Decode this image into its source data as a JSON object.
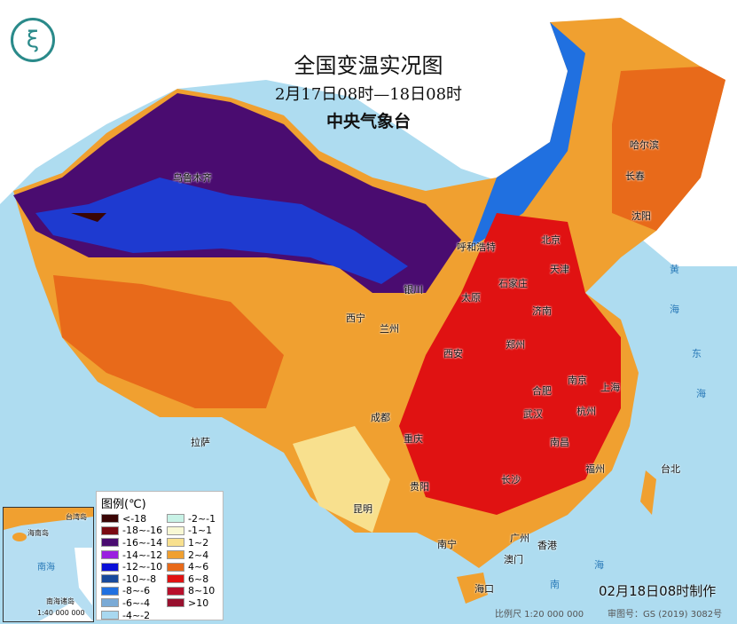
{
  "header": {
    "title": "全国变温实况图",
    "period": "2月17日08时—18日08时",
    "agency": "中央气象台"
  },
  "logo": {
    "icon": "cma-logo"
  },
  "cities": [
    "乌鲁木齐",
    "哈尔滨",
    "长春",
    "沈阳",
    "北京",
    "天津",
    "呼和浩特",
    "石家庄",
    "太原",
    "济南",
    "银川",
    "西宁",
    "兰州",
    "西安",
    "郑州",
    "合肥",
    "南京",
    "上海",
    "杭州",
    "武汉",
    "成都",
    "重庆",
    "拉萨",
    "长沙",
    "南昌",
    "福州",
    "台北",
    "贵阳",
    "昆明",
    "南宁",
    "广州",
    "香港",
    "澳门",
    "海口"
  ],
  "seas": [
    "黄",
    "海",
    "东",
    "海",
    "南",
    "海"
  ],
  "legend": {
    "title": "图例(℃)",
    "items": [
      {
        "label": "<-18",
        "color": "#3a0505"
      },
      {
        "label": "-2~-1",
        "color": "#c8f2e6"
      },
      {
        "label": "-18~-16",
        "color": "#7a0a12"
      },
      {
        "label": "-1~1",
        "color": "#f8f8d4"
      },
      {
        "label": "-16~-14",
        "color": "#4a0c70"
      },
      {
        "label": "1~2",
        "color": "#f8e08e"
      },
      {
        "label": "-14~-12",
        "color": "#9a20e0"
      },
      {
        "label": "2~4",
        "color": "#f0a030"
      },
      {
        "label": "-12~-10",
        "color": "#0a10d8"
      },
      {
        "label": "4~6",
        "color": "#e86a1a"
      },
      {
        "label": "-10~-8",
        "color": "#184a9c"
      },
      {
        "label": "6~8",
        "color": "#e01212"
      },
      {
        "label": "-8~-6",
        "color": "#2070e0"
      },
      {
        "label": "8~10",
        "color": "#b8102c"
      },
      {
        "label": "-6~-4",
        "color": "#7aaad6"
      },
      {
        "label": ">10",
        "color": "#98102e"
      },
      {
        "label": "-4~-2",
        "color": "#a8d8f0"
      }
    ]
  },
  "inset": {
    "labels": [
      "海南岛",
      "南海",
      "南海诸岛",
      "台湾岛"
    ],
    "scale": "1:40 000 000"
  },
  "footer": {
    "made": "02月18日08时制作",
    "scale": "比例尺 1:20 000 000",
    "map_no": "审图号：GS (2019) 3082号"
  }
}
